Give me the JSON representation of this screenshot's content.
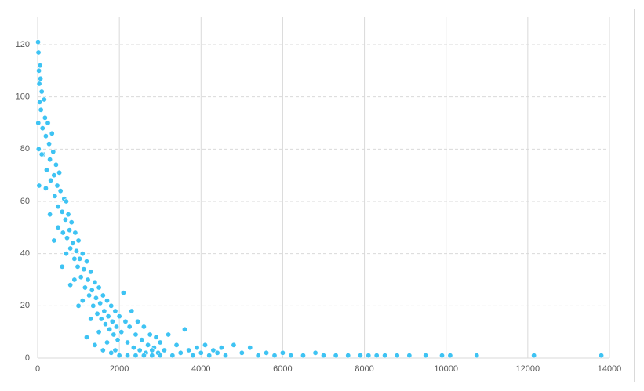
{
  "chart_data": {
    "type": "scatter",
    "color": "#3ec3f3",
    "xlim": [
      0,
      14000
    ],
    "ylim": [
      0,
      120
    ],
    "xticks": [
      0,
      2000,
      4000,
      6000,
      8000,
      10000,
      12000,
      14000
    ],
    "yticks": [
      0,
      20,
      40,
      60,
      80,
      100,
      120
    ],
    "grid": true,
    "x": [
      10,
      20,
      30,
      40,
      50,
      15,
      25,
      35,
      60,
      70,
      80,
      100,
      120,
      140,
      160,
      180,
      200,
      220,
      250,
      280,
      300,
      320,
      350,
      380,
      400,
      420,
      450,
      480,
      500,
      530,
      560,
      600,
      620,
      650,
      680,
      700,
      720,
      750,
      780,
      800,
      830,
      860,
      900,
      920,
      950,
      980,
      1000,
      1030,
      1060,
      1100,
      1130,
      1160,
      1200,
      1230,
      1260,
      1300,
      1330,
      1360,
      1400,
      1430,
      1460,
      1500,
      1530,
      1560,
      1600,
      1630,
      1660,
      1700,
      1730,
      1760,
      1800,
      1830,
      1860,
      1900,
      1930,
      1960,
      2000,
      2050,
      2100,
      2150,
      2200,
      2250,
      2300,
      2350,
      2400,
      2450,
      2500,
      2550,
      2600,
      2650,
      2700,
      2750,
      2800,
      2850,
      2900,
      2950,
      3000,
      3100,
      3200,
      3300,
      3400,
      3500,
      3600,
      3700,
      3800,
      3900,
      4000,
      4100,
      4200,
      4300,
      4400,
      4500,
      4600,
      4800,
      5000,
      5200,
      5400,
      5600,
      5800,
      6000,
      6200,
      6500,
      6800,
      7000,
      7300,
      7600,
      7900,
      8100,
      8300,
      8500,
      8800,
      9100,
      9500,
      9900,
      10100,
      10750,
      12150,
      13800,
      500,
      700,
      900,
      1100,
      1300,
      1500,
      1700,
      1900,
      1000,
      800,
      600,
      400,
      300,
      200,
      100,
      1200,
      1400,
      1600,
      1800,
      2000,
      2200,
      2400,
      2600,
      2800,
      3000
    ],
    "values": [
      121,
      117,
      110,
      105,
      98,
      90,
      80,
      66,
      112,
      107,
      95,
      102,
      88,
      78,
      99,
      92,
      85,
      72,
      90,
      82,
      76,
      68,
      86,
      79,
      70,
      62,
      74,
      66,
      58,
      71,
      64,
      56,
      48,
      61,
      53,
      60,
      46,
      55,
      49,
      42,
      52,
      44,
      38,
      48,
      41,
      35,
      45,
      38,
      31,
      40,
      34,
      27,
      37,
      30,
      24,
      33,
      26,
      20,
      29,
      23,
      17,
      27,
      21,
      15,
      24,
      18,
      13,
      22,
      16,
      11,
      20,
      14,
      9,
      18,
      12,
      7,
      16,
      10,
      25,
      14,
      6,
      12,
      18,
      4,
      9,
      14,
      3,
      7,
      12,
      2,
      5,
      9,
      1,
      4,
      8,
      2,
      6,
      3,
      9,
      1,
      5,
      2,
      11,
      3,
      1,
      4,
      2,
      5,
      1,
      3,
      2,
      4,
      1,
      5,
      2,
      4,
      1,
      2,
      1,
      2,
      1,
      1,
      2,
      1,
      1,
      1,
      1,
      1,
      1,
      1,
      1,
      1,
      1,
      1,
      1,
      1,
      1,
      1,
      50,
      40,
      30,
      22,
      15,
      10,
      6,
      3,
      20,
      28,
      35,
      45,
      55,
      65,
      78,
      8,
      5,
      3,
      2,
      1,
      1,
      1,
      1,
      3,
      1
    ]
  }
}
